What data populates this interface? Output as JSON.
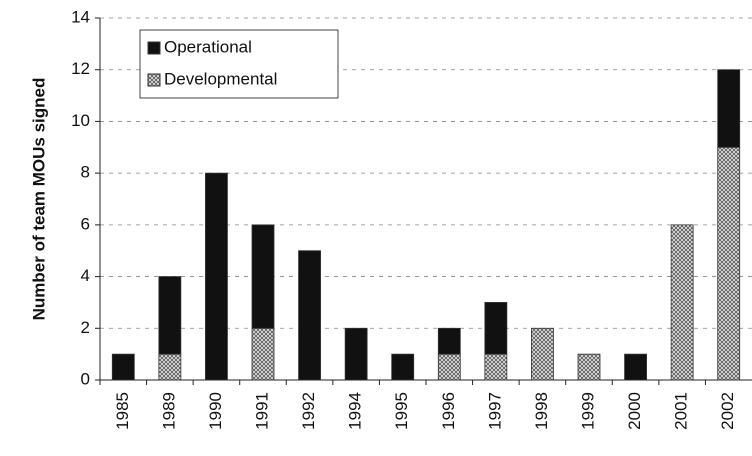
{
  "chart_data": {
    "type": "stacked_bar",
    "y_label": "Number of team MOUs signed",
    "categories": [
      "1985",
      "1989",
      "1990",
      "1991",
      "1992",
      "1994",
      "1995",
      "1996",
      "1997",
      "1998",
      "1999",
      "2000",
      "2001",
      "2002"
    ],
    "series": [
      {
        "name": "Operational",
        "color": "#111111",
        "values": [
          1,
          3,
          8,
          4,
          5,
          2,
          1,
          1,
          2,
          0,
          0,
          1,
          0,
          3
        ]
      },
      {
        "name": "Developmental",
        "color": "#bdbdbd",
        "values": [
          0,
          1,
          0,
          2,
          0,
          0,
          0,
          1,
          1,
          2,
          1,
          0,
          6,
          9
        ]
      }
    ],
    "ylim": [
      0,
      14
    ],
    "yticks": [
      0,
      2,
      4,
      6,
      8,
      10,
      12,
      14
    ],
    "grid": true,
    "legend": "top-left"
  }
}
